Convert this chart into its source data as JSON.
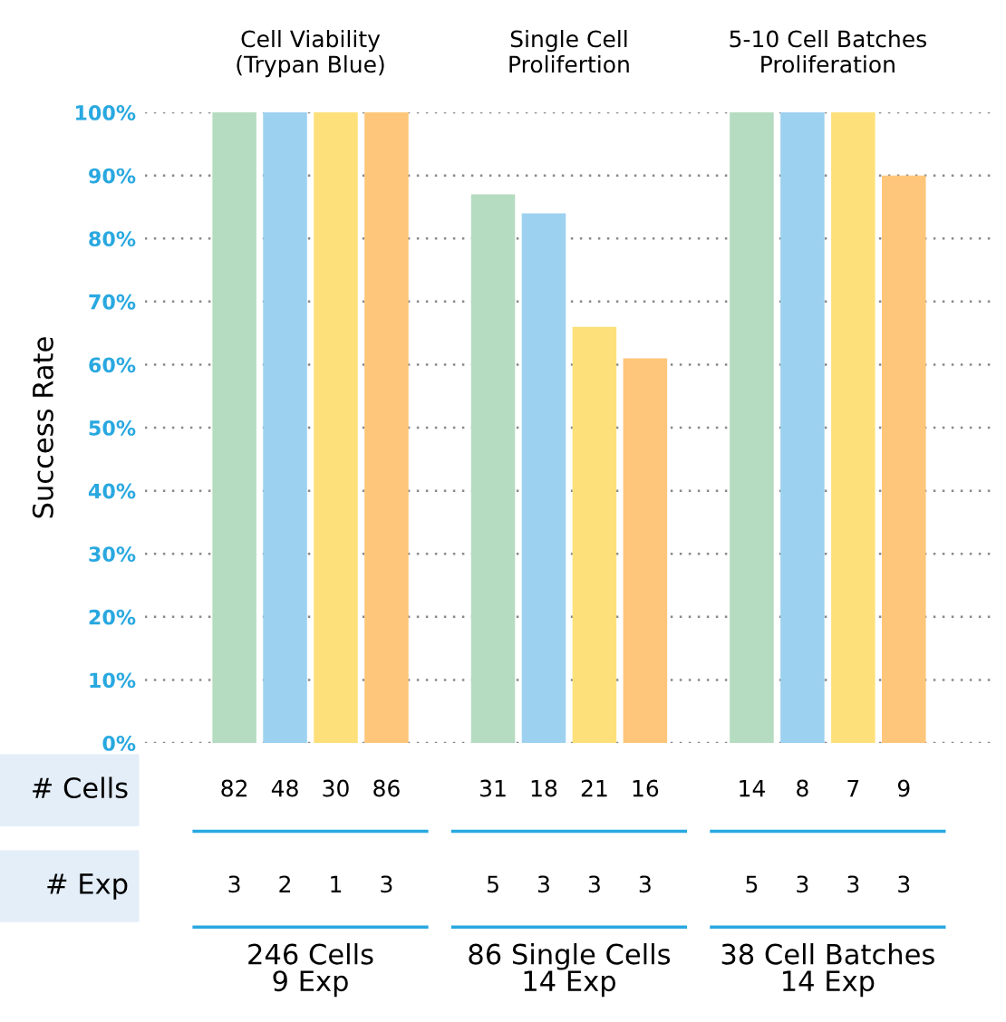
{
  "chart_data": {
    "type": "bar",
    "categories": [
      "Cell Viability\n(Trypan Blue)",
      "Single Cell\nProlifertion",
      "5-10 Cell Batches\nProliferation"
    ],
    "series": [
      {
        "color": "#b5dcc0",
        "values": [
          100,
          87,
          100
        ]
      },
      {
        "color": "#9dd1f0",
        "values": [
          100,
          84,
          100
        ]
      },
      {
        "color": "#fde07a",
        "values": [
          100,
          66,
          100
        ]
      },
      {
        "color": "#fdc67a",
        "values": [
          100,
          61,
          90
        ]
      }
    ],
    "ylabel": "Success Rate",
    "ylim": [
      0,
      100
    ],
    "yticks": [
      {
        "value": 0,
        "label": "0%"
      },
      {
        "value": 10,
        "label": "10%"
      },
      {
        "value": 20,
        "label": "20%"
      },
      {
        "value": 30,
        "label": "30%"
      },
      {
        "value": 40,
        "label": "40%"
      },
      {
        "value": 50,
        "label": "50%"
      },
      {
        "value": 60,
        "label": "60%"
      },
      {
        "value": 70,
        "label": "70%"
      },
      {
        "value": 80,
        "label": "80%"
      },
      {
        "value": 90,
        "label": "90%"
      },
      {
        "value": 100,
        "label": "100%"
      }
    ],
    "grid": "y",
    "annotations": [
      "# Cells",
      "82",
      "48",
      "30",
      "86",
      "31",
      "18",
      "21",
      "16",
      "14",
      "8",
      "7",
      "9",
      "# Exp",
      "3",
      "2",
      "1",
      "3",
      "5",
      "3",
      "3",
      "3",
      "5",
      "3",
      "3",
      "3",
      "246 Cells\n9 Exp",
      "86 Single Cells\n14 Exp",
      "38 Cell Batches\n14 Exp"
    ]
  }
}
